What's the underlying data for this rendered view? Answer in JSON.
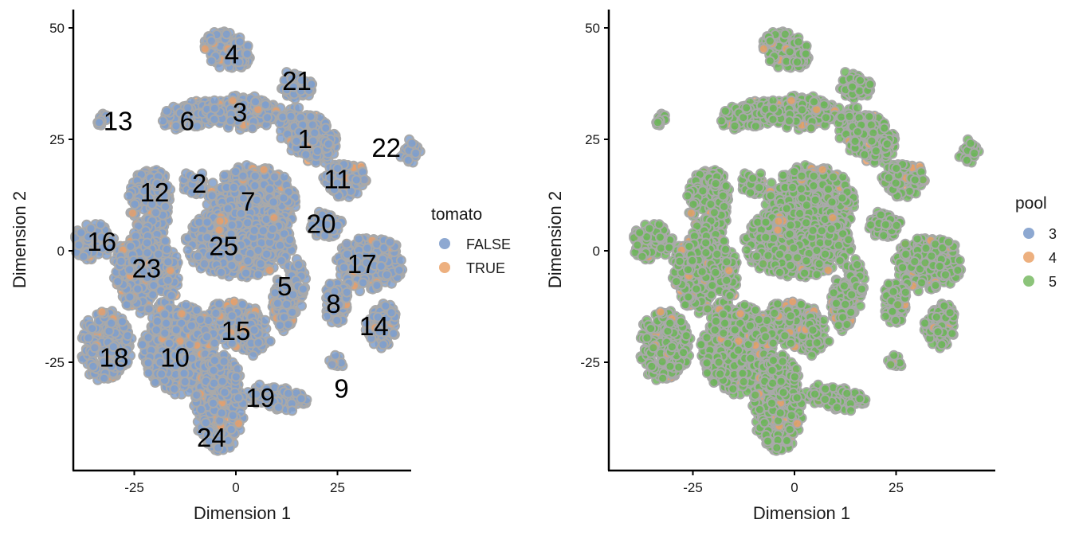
{
  "chart_data": [
    {
      "type": "scatter",
      "title": "",
      "xlabel": "Dimension 1",
      "ylabel": "Dimension 2",
      "xlim": [
        -45,
        45
      ],
      "ylim": [
        -50,
        53
      ],
      "x_ticks": [
        -25,
        0,
        25
      ],
      "x_tick_labels": [
        "-25",
        "0",
        "25"
      ],
      "y_ticks": [
        -25,
        0,
        25,
        50
      ],
      "y_tick_labels": [
        "-25",
        "0",
        "25",
        "50"
      ],
      "grid": false,
      "legend": {
        "title": "tomato",
        "position": "right",
        "entries": [
          {
            "label": "FALSE",
            "color": "#8DA8D1"
          },
          {
            "label": "TRUE",
            "color": "#EDB07F"
          }
        ]
      },
      "point_colors": {
        "fill": "#7F9FCC",
        "outline": "#A9A9A9",
        "minority_fill": "#E8A06A"
      },
      "cluster_labels": [
        {
          "text": "4",
          "x": -1,
          "y": 44
        },
        {
          "text": "21",
          "x": 15,
          "y": 38
        },
        {
          "text": "13",
          "x": -29,
          "y": 29
        },
        {
          "text": "6",
          "x": -12,
          "y": 29
        },
        {
          "text": "3",
          "x": 1,
          "y": 31
        },
        {
          "text": "1",
          "x": 17,
          "y": 25
        },
        {
          "text": "22",
          "x": 37,
          "y": 23
        },
        {
          "text": "11",
          "x": 25,
          "y": 16
        },
        {
          "text": "2",
          "x": -9,
          "y": 15
        },
        {
          "text": "12",
          "x": -20,
          "y": 13
        },
        {
          "text": "7",
          "x": 3,
          "y": 11
        },
        {
          "text": "20",
          "x": 21,
          "y": 6
        },
        {
          "text": "16",
          "x": -33,
          "y": 2
        },
        {
          "text": "25",
          "x": -3,
          "y": 1
        },
        {
          "text": "17",
          "x": 31,
          "y": -3
        },
        {
          "text": "23",
          "x": -22,
          "y": -4
        },
        {
          "text": "5",
          "x": 12,
          "y": -8
        },
        {
          "text": "8",
          "x": 24,
          "y": -12
        },
        {
          "text": "14",
          "x": 34,
          "y": -17
        },
        {
          "text": "15",
          "x": 0,
          "y": -18
        },
        {
          "text": "18",
          "x": -30,
          "y": -24
        },
        {
          "text": "10",
          "x": -15,
          "y": -24
        },
        {
          "text": "9",
          "x": 26,
          "y": -31
        },
        {
          "text": "19",
          "x": 6,
          "y": -33
        },
        {
          "text": "24",
          "x": -6,
          "y": -42
        }
      ],
      "clusters": [
        {
          "id": "4",
          "cx": -2,
          "cy": 45,
          "rx": 6,
          "ry": 4,
          "rot": -25
        },
        {
          "id": "21",
          "cx": 15,
          "cy": 37,
          "rx": 4,
          "ry": 3,
          "rot": 0
        },
        {
          "id": "13",
          "cx": -33,
          "cy": 29.5,
          "rx": 1.2,
          "ry": 1.2,
          "rot": 0
        },
        {
          "id": "6",
          "cx": -11,
          "cy": 30.5,
          "rx": 7,
          "ry": 3,
          "rot": 10
        },
        {
          "id": "3",
          "cx": 2,
          "cy": 31,
          "rx": 9,
          "ry": 3.5,
          "rot": 0
        },
        {
          "id": "1",
          "cx": 18,
          "cy": 26,
          "rx": 8,
          "ry": 5,
          "rot": -35
        },
        {
          "id": "22",
          "cx": 43,
          "cy": 22,
          "rx": 2,
          "ry": 2.5,
          "rot": 0
        },
        {
          "id": "11",
          "cx": 27,
          "cy": 16,
          "rx": 5,
          "ry": 4,
          "rot": 0
        },
        {
          "id": "2",
          "cx": -10,
          "cy": 15,
          "rx": 3,
          "ry": 2.5,
          "rot": 0
        },
        {
          "id": "12",
          "cx": -21,
          "cy": 11,
          "rx": 5,
          "ry": 8,
          "rot": 0
        },
        {
          "id": "7",
          "cx": 4,
          "cy": 11,
          "rx": 11,
          "ry": 8,
          "rot": 0
        },
        {
          "id": "25",
          "cx": 1,
          "cy": 2,
          "rx": 13,
          "ry": 8,
          "rot": 0
        },
        {
          "id": "20",
          "cx": 22,
          "cy": 6,
          "rx": 4,
          "ry": 3,
          "rot": 0
        },
        {
          "id": "16",
          "cx": -35,
          "cy": 2,
          "rx": 5,
          "ry": 4,
          "rot": 0
        },
        {
          "id": "17",
          "cx": 33,
          "cy": -3,
          "rx": 8,
          "ry": 6,
          "rot": 0
        },
        {
          "id": "23",
          "cx": -22,
          "cy": -5,
          "rx": 8,
          "ry": 9,
          "rot": 0
        },
        {
          "id": "5",
          "cx": 13,
          "cy": -10,
          "rx": 3.5,
          "ry": 8,
          "rot": -15
        },
        {
          "id": "8",
          "cx": 25,
          "cy": -12,
          "rx": 3,
          "ry": 5,
          "rot": 0
        },
        {
          "id": "14",
          "cx": 36,
          "cy": -17,
          "rx": 4,
          "ry": 5,
          "rot": -20
        },
        {
          "id": "15",
          "cx": 1,
          "cy": -17,
          "rx": 8,
          "ry": 5,
          "rot": -30
        },
        {
          "id": "18",
          "cx": -32,
          "cy": -21,
          "rx": 6,
          "ry": 8,
          "rot": 0
        },
        {
          "id": "10",
          "cx": -14,
          "cy": -22,
          "rx": 9,
          "ry": 10,
          "rot": 0
        },
        {
          "id": "19",
          "cx": 10,
          "cy": -33,
          "rx": 8,
          "ry": 2.5,
          "rot": -10
        },
        {
          "id": "24",
          "cx": -4,
          "cy": -34,
          "rx": 6,
          "ry": 11,
          "rot": 0
        },
        {
          "id": "9",
          "cx": 25,
          "cy": -25,
          "rx": 1.2,
          "ry": 1.5,
          "rot": 0
        }
      ]
    },
    {
      "type": "scatter",
      "title": "",
      "xlabel": "Dimension 1",
      "ylabel": "Dimension 2",
      "xlim": [
        -45,
        45
      ],
      "ylim": [
        -50,
        53
      ],
      "x_ticks": [
        -25,
        0,
        25
      ],
      "x_tick_labels": [
        "-25",
        "0",
        "25"
      ],
      "y_ticks": [
        -25,
        0,
        25,
        50
      ],
      "y_tick_labels": [
        "-25",
        "0",
        "25",
        "50"
      ],
      "grid": false,
      "legend": {
        "title": "pool",
        "position": "right",
        "entries": [
          {
            "label": "3",
            "color": "#8DA8D1"
          },
          {
            "label": "4",
            "color": "#EDB07F"
          },
          {
            "label": "5",
            "color": "#8CC47A"
          }
        ]
      },
      "point_colors": {
        "fill": "#6DB55A",
        "outline": "#A9A9A9",
        "minority_fill": "#E8A06A"
      },
      "cluster_labels": [],
      "clusters_ref": 0
    }
  ]
}
